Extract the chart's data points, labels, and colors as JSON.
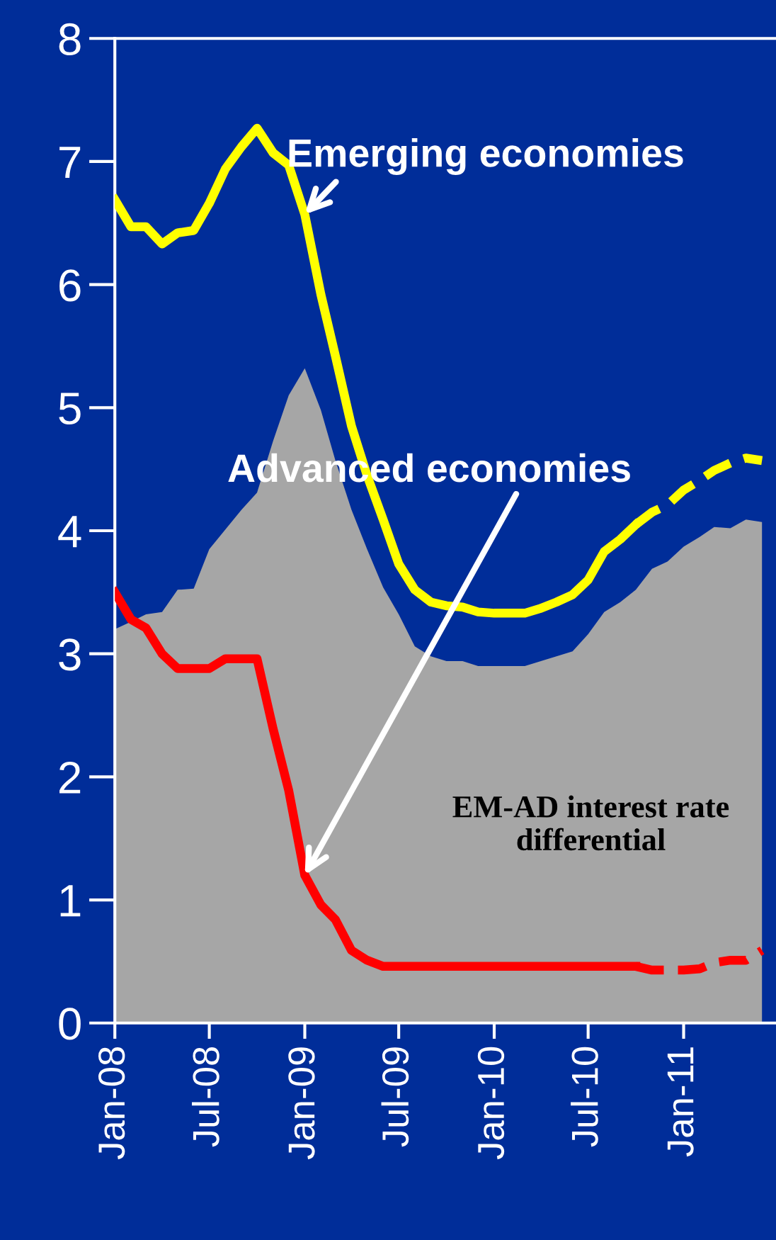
{
  "chart_data": {
    "type": "line",
    "x": [
      "2008-01",
      "2008-02",
      "2008-03",
      "2008-04",
      "2008-05",
      "2008-06",
      "2008-07",
      "2008-08",
      "2008-09",
      "2008-10",
      "2008-11",
      "2008-12",
      "2009-01",
      "2009-02",
      "2009-03",
      "2009-04",
      "2009-05",
      "2009-06",
      "2009-07",
      "2009-08",
      "2009-09",
      "2009-10",
      "2009-11",
      "2009-12",
      "2010-01",
      "2010-02",
      "2010-03",
      "2010-04",
      "2010-05",
      "2010-06",
      "2010-07",
      "2010-08",
      "2010-09",
      "2010-10",
      "2010-11",
      "2010-12",
      "2011-01",
      "2011-02",
      "2011-03",
      "2011-04",
      "2011-05",
      "2011-06"
    ],
    "series": [
      {
        "type": "area",
        "color": "#a6a6a6",
        "values": [
          3.2,
          3.26,
          3.32,
          3.34,
          3.52,
          3.53,
          3.85,
          4.01,
          4.17,
          4.31,
          4.73,
          5.1,
          5.32,
          4.98,
          4.57,
          4.17,
          3.85,
          3.54,
          3.32,
          3.06,
          2.98,
          2.94,
          2.94,
          2.9,
          2.9,
          2.9,
          2.9,
          2.94,
          2.98,
          3.02,
          3.16,
          3.34,
          3.42,
          3.52,
          3.69,
          3.75,
          3.87,
          3.95,
          4.03,
          4.02,
          4.09,
          4.07
        ]
      },
      {
        "color": "#ffff00",
        "line_style": "solid",
        "values": [
          6.69,
          6.47,
          6.47,
          6.33,
          6.42,
          6.44,
          6.66,
          6.94,
          7.12,
          7.27,
          7.07,
          6.97,
          6.57,
          5.92,
          5.42,
          4.85,
          4.45,
          4.09,
          3.73,
          3.52,
          3.42,
          3.39,
          3.38,
          3.34,
          3.33,
          3.33,
          3.33,
          3.37,
          3.42,
          3.48,
          3.6,
          3.83,
          3.93,
          4.05,
          null,
          null,
          null,
          null,
          null,
          null,
          null,
          null
        ]
      },
      {
        "color": "#ffff00",
        "line_style": "dashed",
        "values": [
          null,
          null,
          null,
          null,
          null,
          null,
          null,
          null,
          null,
          null,
          null,
          null,
          null,
          null,
          null,
          null,
          null,
          null,
          null,
          null,
          null,
          null,
          null,
          null,
          null,
          null,
          null,
          null,
          null,
          null,
          null,
          null,
          null,
          4.05,
          4.15,
          4.21,
          4.33,
          4.41,
          4.49,
          4.55,
          4.59,
          4.57
        ]
      },
      {
        "color": "#ff0000",
        "line_style": "solid",
        "values": [
          3.5,
          3.28,
          3.21,
          3.0,
          2.88,
          2.88,
          2.88,
          2.96,
          2.96,
          2.96,
          2.39,
          1.89,
          1.2,
          0.96,
          0.84,
          0.59,
          0.51,
          0.46,
          0.46,
          0.46,
          0.46,
          0.46,
          0.46,
          0.46,
          0.46,
          0.46,
          0.46,
          0.46,
          0.46,
          0.46,
          0.46,
          0.46,
          0.46,
          0.46,
          null,
          null,
          null,
          null,
          null,
          null,
          null,
          null
        ]
      },
      {
        "color": "#ff0000",
        "line_style": "dashed",
        "values": [
          null,
          null,
          null,
          null,
          null,
          null,
          null,
          null,
          null,
          null,
          null,
          null,
          null,
          null,
          null,
          null,
          null,
          null,
          null,
          null,
          null,
          null,
          null,
          null,
          null,
          null,
          null,
          null,
          null,
          null,
          null,
          null,
          null,
          0.46,
          0.43,
          0.43,
          0.43,
          0.44,
          0.49,
          0.51,
          0.51,
          0.59
        ]
      }
    ],
    "xlim": [
      "2008-01-01",
      "2011-06-28"
    ],
    "xticks": [
      {
        "value": "2008-01",
        "label": "Jan-08"
      },
      {
        "value": "2008-07",
        "label": "Jul-08"
      },
      {
        "value": "2009-01",
        "label": "Jan-09"
      },
      {
        "value": "2009-07",
        "label": "Jul-09"
      },
      {
        "value": "2010-01",
        "label": "Jan-10"
      },
      {
        "value": "2010-07",
        "label": "Jul-10"
      },
      {
        "value": "2011-01",
        "label": "Jan-11"
      }
    ],
    "ylim": [
      0,
      8
    ],
    "yticks": [
      0,
      1,
      2,
      3,
      4,
      5,
      6,
      7,
      8
    ],
    "grid": false,
    "legend": false,
    "marker": "none",
    "annotations": [
      {
        "text": "Emerging economies",
        "x": "2009-01",
        "y": 6.57
      },
      {
        "text": "Advanced economies",
        "x": "2009-01",
        "y": 1.2
      },
      "EM-AD interest rate differential"
    ]
  }
}
